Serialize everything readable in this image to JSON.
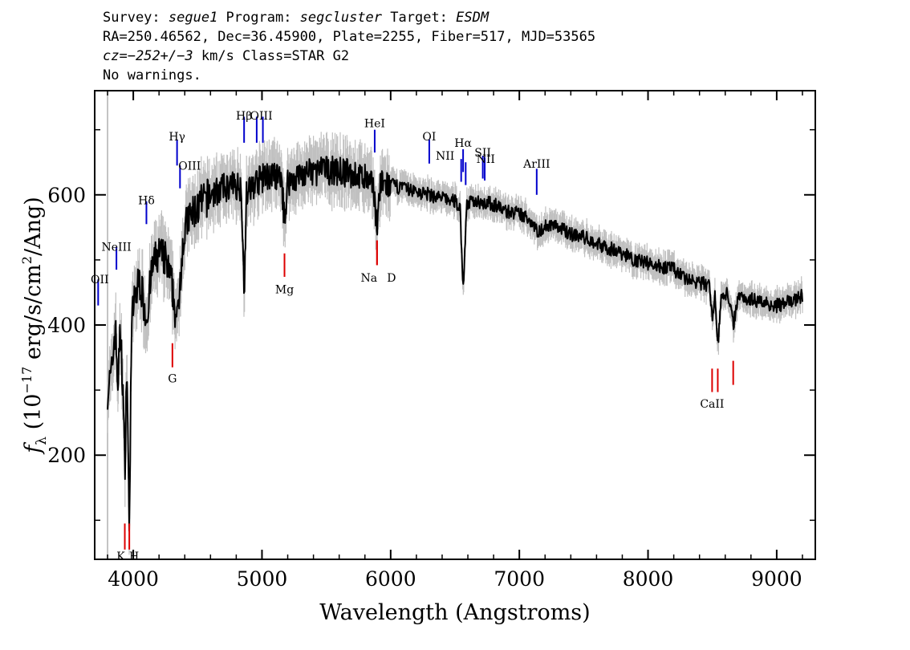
{
  "header": {
    "line1": {
      "survey_label": "Survey: ",
      "survey": "segue1",
      "program_label": " Program: ",
      "program": "segcluster",
      "target_label": " Target: ",
      "target": "ESDM"
    },
    "line2": "RA=250.46562, Dec=36.45900, Plate=2255, Fiber=517, MJD=53565",
    "line3": {
      "cz": "cz",
      "cz_eq": "=",
      "cz_value": "−252+/−3",
      "cz_rest": " km/s Class=STAR G2"
    },
    "line4": "No warnings."
  },
  "chart_data": {
    "type": "line",
    "xlabel": "Wavelength (Angstroms)",
    "ylabel_main": "f",
    "ylabel_sub": "λ",
    "ylabel_open": " (10",
    "ylabel_exp": "−17",
    "ylabel_mid": " erg/s/cm",
    "ylabel_exp2": "2",
    "ylabel_close": "/Ang)",
    "xlim": [
      3700,
      9300
    ],
    "ylim": [
      40,
      760
    ],
    "x_ticks": [
      4000,
      5000,
      6000,
      7000,
      8000,
      9000
    ],
    "x_tick_labels": [
      "4000",
      "5000",
      "6000",
      "7000",
      "8000",
      "9000"
    ],
    "y_ticks": [
      200,
      400,
      600
    ],
    "y_tick_labels": [
      "200",
      "400",
      "600"
    ],
    "grid": false,
    "series": [
      {
        "color": "#000000",
        "error_color": "#c0c0c0",
        "x": [
          3800,
          3830,
          3860,
          3880,
          3900,
          3920,
          3934,
          3950,
          3968,
          3985,
          4000,
          4050,
          4102,
          4150,
          4200,
          4250,
          4300,
          4340,
          4380,
          4420,
          4500,
          4600,
          4700,
          4800,
          4840,
          4861,
          4880,
          4950,
          5050,
          5150,
          5175,
          5200,
          5300,
          5400,
          5500,
          5600,
          5700,
          5800,
          5870,
          5893,
          5920,
          6000,
          6100,
          6200,
          6300,
          6400,
          6500,
          6540,
          6563,
          6590,
          6650,
          6700,
          6800,
          6900,
          7000,
          7100,
          7150,
          7180,
          7250,
          7400,
          7500,
          7600,
          7700,
          7800,
          7900,
          8000,
          8100,
          8200,
          8300,
          8400,
          8480,
          8498,
          8520,
          8542,
          8570,
          8620,
          8662,
          8700,
          8800,
          8900,
          9000,
          9100,
          9200
        ],
        "y": [
          300,
          320,
          400,
          310,
          390,
          300,
          170,
          350,
          80,
          380,
          430,
          470,
          410,
          490,
          510,
          500,
          460,
          400,
          520,
          560,
          580,
          600,
          610,
          615,
          612,
          450,
          600,
          620,
          630,
          625,
          560,
          620,
          630,
          635,
          638,
          636,
          632,
          625,
          610,
          550,
          615,
          615,
          610,
          605,
          600,
          595,
          590,
          580,
          450,
          585,
          590,
          590,
          585,
          575,
          570,
          560,
          540,
          550,
          555,
          540,
          535,
          525,
          518,
          510,
          500,
          495,
          490,
          485,
          470,
          465,
          460,
          410,
          450,
          365,
          445,
          450,
          400,
          445,
          440,
          435,
          430,
          435,
          445
        ]
      }
    ],
    "lines": {
      "emission": [
        {
          "label": "OII",
          "wave": 3727,
          "y0": 430,
          "y1": 470,
          "label_y": 470
        },
        {
          "label": "NeIII",
          "wave": 3869,
          "y0": 485,
          "y1": 520,
          "label_y": 520
        },
        {
          "label": "Hδ",
          "wave": 4102,
          "y0": 555,
          "y1": 590,
          "label_y": 592
        },
        {
          "label": "Hγ",
          "wave": 4340,
          "y0": 645,
          "y1": 685,
          "label_y": 690
        },
        {
          "label": "OIII",
          "wave": 4363,
          "y0": 610,
          "y1": 645,
          "label_y": 645
        },
        {
          "label": "Hβ",
          "wave": 4861,
          "y0": 680,
          "y1": 720,
          "label_y": 722
        },
        {
          "label": "OIII",
          "wave": 4959,
          "y0": 680,
          "y1": 720,
          "label_y": 722
        },
        {
          "label": "OIII",
          "wave": 5007,
          "y0": 680,
          "y1": 720,
          "label_y": 722
        },
        {
          "label": "HeI",
          "wave": 5876,
          "y0": 665,
          "y1": 700,
          "label_y": 710
        },
        {
          "label": "OI",
          "wave": 6300,
          "y0": 648,
          "y1": 685,
          "label_y": 690
        },
        {
          "label": "NII",
          "wave": 6548,
          "y0": 620,
          "y1": 655,
          "label_y": 660
        },
        {
          "label": "Hα",
          "wave": 6563,
          "y0": 635,
          "y1": 670,
          "label_y": 680
        },
        {
          "label": "NII",
          "wave": 6583,
          "y0": 615,
          "y1": 650,
          "label_y": 655
        },
        {
          "label": "SII",
          "wave": 6716,
          "y0": 625,
          "y1": 660,
          "label_y": 665
        },
        {
          "label": "SII",
          "wave": 6731,
          "y0": 622,
          "y1": 658,
          "label_y": 655
        },
        {
          "label": "ArIII",
          "wave": 7135,
          "y0": 600,
          "y1": 640,
          "label_y": 648
        }
      ],
      "absorption": [
        {
          "label": "K",
          "wave": 3934,
          "y0": 55,
          "y1": 95,
          "label_y": 45
        },
        {
          "label": "H",
          "wave": 3969,
          "y0": 55,
          "y1": 95,
          "label_y": 45
        },
        {
          "label": "G",
          "wave": 4304,
          "y0": 335,
          "y1": 372,
          "label_y": 318
        },
        {
          "label": "Mg",
          "wave": 5175,
          "y0": 474,
          "y1": 510,
          "label_y": 455
        },
        {
          "label": "Na",
          "wave": 5894,
          "y0": 492,
          "y1": 530,
          "label_y": 473
        },
        {
          "label": "D",
          "wave": 5894,
          "y0": 492,
          "y1": 530,
          "label_y": 473
        },
        {
          "label": "CaII",
          "wave": 8498,
          "y0": 297,
          "y1": 333,
          "label_y": 279
        },
        {
          "label": "CaII",
          "wave": 8542,
          "y0": 297,
          "y1": 333,
          "label_y": 279
        },
        {
          "label": "CaII",
          "wave": 8662,
          "y0": 308,
          "y1": 345,
          "label_y": 279
        }
      ],
      "emission_color": "#0000cc",
      "absorption_color": "#dd0000"
    }
  }
}
